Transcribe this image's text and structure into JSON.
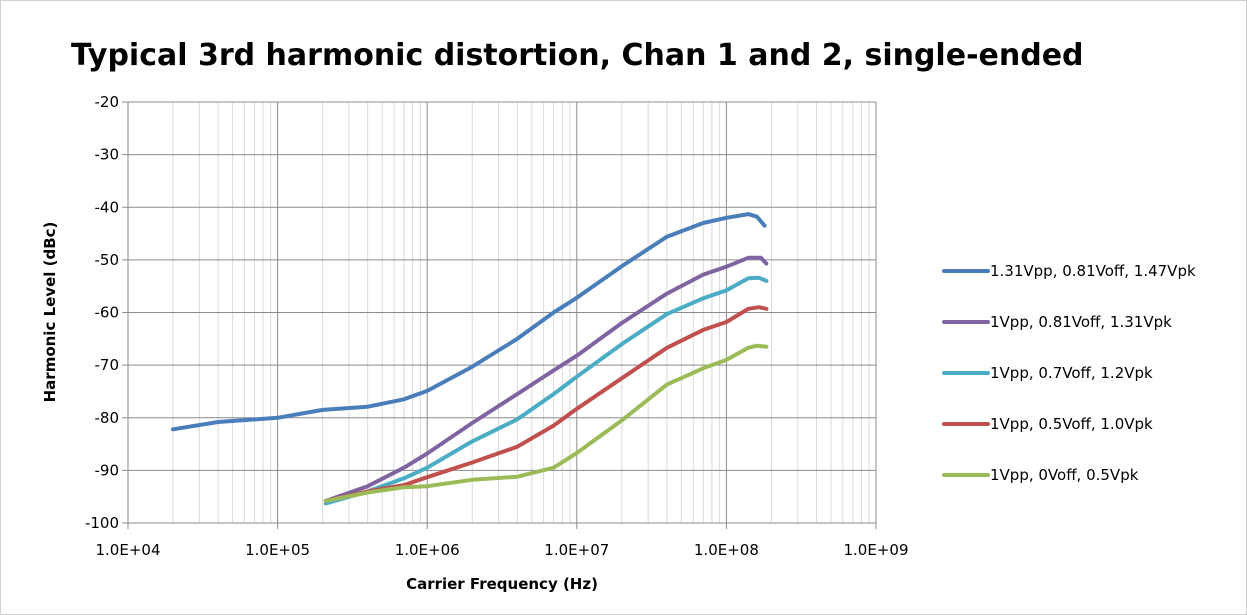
{
  "chart_data": {
    "type": "line",
    "title": "Typical 3rd harmonic distortion, Chan 1 and 2, single-ended",
    "xlabel": "Carrier Frequency (Hz)",
    "ylabel": "Harmonic Level (dBc)",
    "x_scale": "log",
    "xlim": [
      10000,
      1000000000
    ],
    "ylim": [
      -100,
      -20
    ],
    "x_ticks": [
      10000,
      100000,
      1000000,
      10000000,
      100000000,
      1000000000
    ],
    "x_tick_labels": [
      "1.0E+04",
      "1.0E+05",
      "1.0E+06",
      "1.0E+07",
      "1.0E+08",
      "1.0E+09"
    ],
    "y_ticks": [
      -100,
      -90,
      -80,
      -70,
      -60,
      -50,
      -40,
      -30,
      -20
    ],
    "y_tick_labels": [
      "-100",
      "-90",
      "-80",
      "-70",
      "-60",
      "-50",
      "-40",
      "-30",
      "-20"
    ],
    "grid": true,
    "legend_position": "right",
    "series": [
      {
        "name": "1.31Vpp, 0.81Voff, 1.47Vpk",
        "color": "#4a7ebb",
        "points": [
          [
            20000,
            -82.2
          ],
          [
            40000,
            -80.8
          ],
          [
            100000,
            -80.0
          ],
          [
            200000,
            -78.5
          ],
          [
            400000,
            -77.9
          ],
          [
            700000,
            -76.5
          ],
          [
            1000000,
            -74.9
          ],
          [
            2000000,
            -70.3
          ],
          [
            4000000,
            -65.0
          ],
          [
            7000000,
            -60.0
          ],
          [
            10000000,
            -57.2
          ],
          [
            20000000,
            -51.2
          ],
          [
            40000000,
            -45.6
          ],
          [
            70000000,
            -43.0
          ],
          [
            100000000,
            -42.0
          ],
          [
            140000000,
            -41.3
          ],
          [
            160000000,
            -41.8
          ],
          [
            180000000,
            -43.5
          ]
        ]
      },
      {
        "name": "1Vpp, 0.81Voff, 1.31Vpk",
        "color": "#8064a2",
        "points": [
          [
            210000,
            -95.8
          ],
          [
            400000,
            -93.0
          ],
          [
            700000,
            -89.5
          ],
          [
            1000000,
            -86.8
          ],
          [
            2000000,
            -81.0
          ],
          [
            4000000,
            -75.5
          ],
          [
            7000000,
            -71.0
          ],
          [
            10000000,
            -68.2
          ],
          [
            20000000,
            -62.0
          ],
          [
            40000000,
            -56.4
          ],
          [
            70000000,
            -52.8
          ],
          [
            100000000,
            -51.3
          ],
          [
            140000000,
            -49.6
          ],
          [
            170000000,
            -49.6
          ],
          [
            185000000,
            -50.7
          ]
        ]
      },
      {
        "name": "1Vpp, 0.7Voff, 1.2Vpk",
        "color": "#4bacc6",
        "points": [
          [
            210000,
            -96.3
          ],
          [
            400000,
            -94.0
          ],
          [
            700000,
            -91.5
          ],
          [
            1000000,
            -89.5
          ],
          [
            2000000,
            -84.5
          ],
          [
            4000000,
            -80.3
          ],
          [
            7000000,
            -75.5
          ],
          [
            10000000,
            -72.2
          ],
          [
            20000000,
            -66.0
          ],
          [
            40000000,
            -60.3
          ],
          [
            70000000,
            -57.3
          ],
          [
            100000000,
            -55.8
          ],
          [
            140000000,
            -53.5
          ],
          [
            165000000,
            -53.4
          ],
          [
            185000000,
            -54.0
          ]
        ]
      },
      {
        "name": "1Vpp, 0.5Voff, 1.0Vpk",
        "color": "#c0504d",
        "points": [
          [
            210000,
            -95.8
          ],
          [
            400000,
            -94.0
          ],
          [
            700000,
            -92.8
          ],
          [
            1000000,
            -91.3
          ],
          [
            2000000,
            -88.5
          ],
          [
            4000000,
            -85.5
          ],
          [
            7000000,
            -81.5
          ],
          [
            10000000,
            -78.3
          ],
          [
            20000000,
            -72.5
          ],
          [
            40000000,
            -66.7
          ],
          [
            70000000,
            -63.3
          ],
          [
            100000000,
            -61.8
          ],
          [
            140000000,
            -59.3
          ],
          [
            165000000,
            -59.0
          ],
          [
            185000000,
            -59.3
          ]
        ]
      },
      {
        "name": "1Vpp, 0Voff, 0.5Vpk",
        "color": "#9bbb59",
        "points": [
          [
            210000,
            -95.8
          ],
          [
            400000,
            -94.2
          ],
          [
            700000,
            -93.2
          ],
          [
            1000000,
            -93.0
          ],
          [
            2000000,
            -91.8
          ],
          [
            4000000,
            -91.2
          ],
          [
            7000000,
            -89.5
          ],
          [
            10000000,
            -86.7
          ],
          [
            20000000,
            -80.5
          ],
          [
            40000000,
            -73.7
          ],
          [
            70000000,
            -70.6
          ],
          [
            100000000,
            -69.0
          ],
          [
            140000000,
            -66.7
          ],
          [
            160000000,
            -66.3
          ],
          [
            185000000,
            -66.5
          ]
        ]
      }
    ]
  }
}
